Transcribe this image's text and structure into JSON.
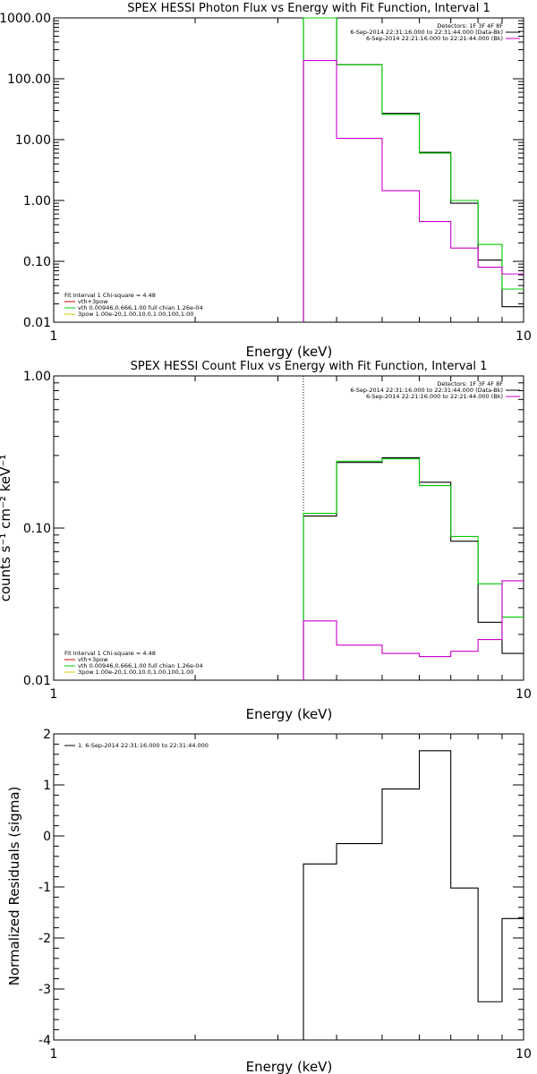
{
  "chart_data": [
    {
      "type": "line",
      "title": "SPEX HESSI Photon Flux vs Energy with Fit Function, Interval 1",
      "xlabel": "Energy (keV)",
      "ylabel": "",
      "xscale": "log",
      "yscale": "log",
      "xlim": [
        1,
        10
      ],
      "ylim": [
        0.01,
        1000
      ],
      "xticks": [
        "1",
        "10"
      ],
      "yticks": [
        "0.01",
        "0.10",
        "1.00",
        "10.00",
        "100.00",
        "1000.00"
      ],
      "vline": {
        "x": 3.4,
        "color": "#00cc00",
        "style": "dotted"
      },
      "legend_right": {
        "placement": "top-right",
        "header": "Detectors: 1F 3F 4F 8F",
        "lines": [
          {
            "text": "6-Sep-2014 22:31:16.000 to 22:31:44.000 (Data-Bk)",
            "color": "#000000"
          },
          {
            "text": "6-Sep-2014 22:21:16.000 to 22:21:44.000 (Bk)",
            "color": "#cc00cc"
          }
        ]
      },
      "legend_left": {
        "placement": "bottom-left",
        "header": "Fit Interval 1   Chi-square = 4.48",
        "lines": [
          {
            "text": "vth+3pow",
            "color": "#cc0000"
          },
          {
            "text": "vth 0.00946,0.666,1.00  full chian 1.26e-04",
            "color": "#00cc00"
          },
          {
            "text": "3pow 1.00e-20,1.00,10.0,1.00,100,1.00",
            "color": "#cccc00"
          }
        ]
      },
      "series": [
        {
          "color": "#000000",
          "edges": [
            3.4,
            4.0,
            5.0,
            6.0,
            7.0,
            8.0,
            9.0,
            10.0
          ],
          "values": [
            1000,
            170,
            27,
            6.2,
            0.9,
            0.105,
            0.018
          ]
        },
        {
          "color": "#00cc00",
          "edges": [
            3.4,
            4.0,
            5.0,
            6.0,
            7.0,
            8.0,
            9.0,
            10.0
          ],
          "values": [
            1000,
            170,
            26,
            6.0,
            1.0,
            0.19,
            0.035
          ]
        },
        {
          "color": "#cc00cc",
          "edges": [
            3.4,
            4.0,
            5.0,
            6.0,
            7.0,
            8.0,
            9.0,
            10.0
          ],
          "values": [
            200,
            10.5,
            1.45,
            0.45,
            0.165,
            0.08,
            0.062
          ]
        }
      ]
    },
    {
      "type": "line",
      "title": "SPEX HESSI Count Flux vs Energy with Fit Function, Interval 1",
      "xlabel": "Energy (keV)",
      "ylabel": "counts s⁻¹ cm⁻² keV⁻¹",
      "xscale": "log",
      "yscale": "log",
      "xlim": [
        1,
        10
      ],
      "ylim": [
        0.01,
        1.0
      ],
      "xticks": [
        "1",
        "10"
      ],
      "yticks": [
        "0.01",
        "0.10",
        "1.00"
      ],
      "vline": {
        "x": 3.4,
        "color": "#000000",
        "style": "dotted"
      },
      "legend_right": {
        "placement": "top-right",
        "header": "Detectors: 1F 3F 4F 8F",
        "lines": [
          {
            "text": "6-Sep-2014 22:31:16.000 to 22:31:44.000 (Data-Bk)",
            "color": "#000000"
          },
          {
            "text": "6-Sep-2014 22:21:16.000 to 22:21:44.000 (Bk)",
            "color": "#cc00cc"
          }
        ]
      },
      "legend_left": {
        "placement": "bottom-left",
        "header": "Fit Interval 1   Chi-square = 4.48",
        "lines": [
          {
            "text": "vth+3pow",
            "color": "#cc0000"
          },
          {
            "text": "vth 0.00946,0.666,1.00  full chian 1.26e-04",
            "color": "#00cc00"
          },
          {
            "text": "3pow 1.00e-20,1.00,10.0,1.00,100,1.00",
            "color": "#cccc00"
          }
        ]
      },
      "series": [
        {
          "color": "#000000",
          "edges": [
            3.4,
            4.0,
            5.0,
            6.0,
            7.0,
            8.0,
            9.0,
            10.0
          ],
          "values": [
            0.12,
            0.27,
            0.29,
            0.2,
            0.082,
            0.024,
            0.015
          ]
        },
        {
          "color": "#00cc00",
          "edges": [
            3.4,
            4.0,
            5.0,
            6.0,
            7.0,
            8.0,
            9.0,
            10.0
          ],
          "values": [
            0.125,
            0.275,
            0.285,
            0.19,
            0.088,
            0.043,
            0.026
          ]
        },
        {
          "color": "#cc00cc",
          "edges": [
            3.4,
            4.0,
            5.0,
            6.0,
            7.0,
            8.0,
            9.0,
            10.0
          ],
          "values": [
            0.0245,
            0.017,
            0.015,
            0.0143,
            0.0155,
            0.0185,
            0.045
          ]
        }
      ]
    },
    {
      "type": "line",
      "title": "",
      "xlabel": "Energy (keV)",
      "ylabel": "Normalized Residuals (sigma)",
      "xscale": "log",
      "yscale": "linear",
      "xlim": [
        1,
        10
      ],
      "ylim": [
        -4,
        2
      ],
      "xticks": [
        "1",
        "10"
      ],
      "yticks": [
        "-4",
        "-3",
        "-2",
        "-1",
        "0",
        "1",
        "2"
      ],
      "legend_left": {
        "placement": "top-left",
        "lines": [
          {
            "text": "1.  6-Sep-2014 22:31:16.000 to 22:31:44.000",
            "color": "#000000"
          }
        ]
      },
      "series": [
        {
          "color": "#000000",
          "edges": [
            3.4,
            4.0,
            5.0,
            6.0,
            7.0,
            8.0,
            9.0,
            10.0
          ],
          "values": [
            -0.55,
            -0.15,
            0.92,
            1.67,
            -1.02,
            -3.25,
            -1.62
          ]
        }
      ]
    }
  ]
}
